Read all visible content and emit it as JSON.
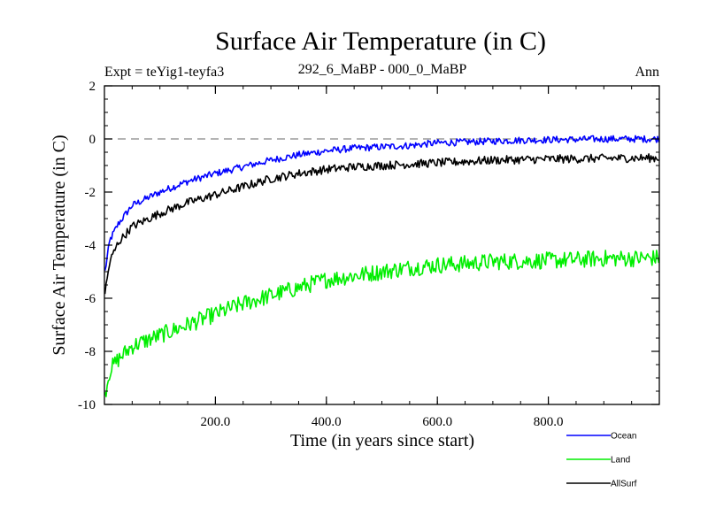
{
  "chart_data": {
    "type": "line",
    "title": "Surface Air Temperature (in C)",
    "subtitle_left": "Expt = teYig1-teyfa3",
    "subtitle_center": "292_6_MaBP - 000_0_MaBP",
    "subtitle_right": "Ann",
    "xlabel": "Time (in years since start)",
    "ylabel": "Surface Air Temperature (in C)",
    "xlim": [
      0,
      1000
    ],
    "ylim": [
      -10,
      2
    ],
    "xticks": [
      200,
      400,
      600,
      800
    ],
    "xtick_labels": [
      "200.0",
      "400.0",
      "600.0",
      "800.0"
    ],
    "yticks": [
      -10,
      -8,
      -6,
      -4,
      -2,
      0,
      2
    ],
    "ytick_labels": [
      "-10",
      "-8",
      "-6",
      "-4",
      "-2",
      "0",
      "2"
    ],
    "reference_line": 0,
    "x": [
      1,
      10,
      25,
      50,
      100,
      150,
      200,
      250,
      300,
      350,
      400,
      450,
      500,
      550,
      600,
      650,
      700,
      750,
      800,
      850,
      900,
      950,
      1000
    ],
    "series": [
      {
        "name": "Ocean",
        "color": "#0000ff",
        "values": [
          -5.0,
          -3.8,
          -3.2,
          -2.5,
          -2.0,
          -1.6,
          -1.3,
          -1.05,
          -0.8,
          -0.6,
          -0.45,
          -0.35,
          -0.3,
          -0.25,
          -0.15,
          -0.12,
          -0.08,
          -0.05,
          -0.03,
          -0.02,
          0.0,
          0.0,
          0.0
        ]
      },
      {
        "name": "Land",
        "color": "#00ee00",
        "values": [
          -9.6,
          -8.7,
          -8.3,
          -7.8,
          -7.4,
          -7.0,
          -6.6,
          -6.2,
          -5.9,
          -5.6,
          -5.3,
          -5.15,
          -5.0,
          -4.85,
          -4.75,
          -4.7,
          -4.62,
          -4.6,
          -4.58,
          -4.55,
          -4.5,
          -4.5,
          -4.48
        ]
      },
      {
        "name": "AllSurf",
        "color": "#000000",
        "values": [
          -5.8,
          -4.6,
          -3.9,
          -3.3,
          -2.8,
          -2.4,
          -2.1,
          -1.8,
          -1.5,
          -1.3,
          -1.15,
          -1.05,
          -1.0,
          -0.95,
          -0.9,
          -0.85,
          -0.8,
          -0.78,
          -0.76,
          -0.75,
          -0.73,
          -0.72,
          -0.72
        ]
      }
    ]
  }
}
